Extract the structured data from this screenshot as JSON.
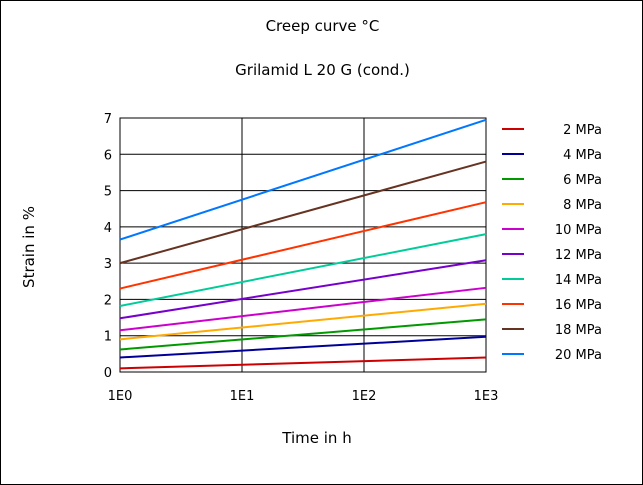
{
  "chart_data": {
    "type": "line",
    "title": "Creep curve °C",
    "subtitle": "Grilamid L 20 G (cond.)",
    "xlabel": "Time in h",
    "ylabel": "Strain in %",
    "xscale": "log",
    "xlim": [
      1,
      1000
    ],
    "ylim": [
      0,
      7
    ],
    "x": [
      1,
      1000
    ],
    "xticks": [
      1,
      10,
      100,
      1000
    ],
    "xtick_labels": [
      "1E0",
      "1E1",
      "1E2",
      "1E3"
    ],
    "yticks": [
      0,
      1,
      2,
      3,
      4,
      5,
      6,
      7
    ],
    "ytick_labels": [
      "0",
      "1",
      "2",
      "3",
      "4",
      "5",
      "6",
      "7"
    ],
    "grid": true,
    "legend_position": "right",
    "series": [
      {
        "name": "2 MPa",
        "color": "#cc0000",
        "values": [
          0.1,
          0.4
        ]
      },
      {
        "name": "4 MPa",
        "color": "#000099",
        "values": [
          0.4,
          0.97
        ]
      },
      {
        "name": "6 MPa",
        "color": "#009900",
        "values": [
          0.62,
          1.45
        ]
      },
      {
        "name": "8 MPa",
        "color": "#ffaa00",
        "values": [
          0.9,
          1.88
        ]
      },
      {
        "name": "10 MPa",
        "color": "#cc00cc",
        "values": [
          1.15,
          2.32
        ]
      },
      {
        "name": "12 MPa",
        "color": "#7700cc",
        "values": [
          1.48,
          3.08
        ]
      },
      {
        "name": "14 MPa",
        "color": "#00cc99",
        "values": [
          1.82,
          3.8
        ]
      },
      {
        "name": "16 MPa",
        "color": "#ff3300",
        "values": [
          2.3,
          4.68
        ]
      },
      {
        "name": "18 MPa",
        "color": "#663322",
        "values": [
          3.0,
          5.8
        ]
      },
      {
        "name": "20 MPa",
        "color": "#0077ff",
        "values": [
          3.65,
          6.95
        ]
      }
    ]
  }
}
